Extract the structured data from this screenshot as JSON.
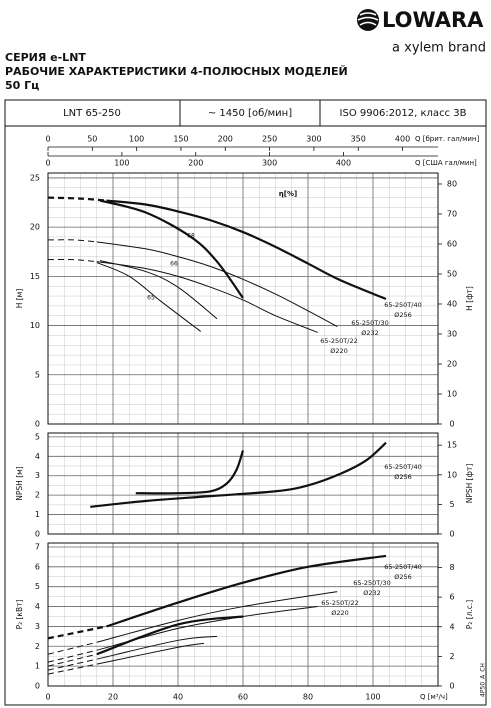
{
  "header": {
    "logo": "LOWARA",
    "brand": "a xylem brand",
    "title_lines": [
      "СЕРИЯ e-LNT",
      "РАБОЧИЕ ХАРАКТЕРИСТИКИ 4-ПОЛЮСНЫХ МОДЕЛЕЙ",
      "50 Гц"
    ]
  },
  "info": [
    "LNT 65-250",
    "~ 1450 [об/мин]",
    "ISO 9906:2012, класс 3B"
  ],
  "top_axes": [
    {
      "label": "Q [брит. гал/мин]",
      "xlim": [
        0,
        440
      ],
      "xticks": [
        0,
        50,
        100,
        150,
        200,
        250,
        300,
        350,
        400
      ]
    },
    {
      "label": "Q [США гал/мин]",
      "xlim": [
        0,
        528
      ],
      "xticks": [
        0,
        100,
        200,
        300,
        400
      ]
    }
  ],
  "footer_code": "4P50_A_CH",
  "chart_data": [
    {
      "type": "line",
      "ylabel": "H [м]",
      "y2label": "H [фт]",
      "xlim": [
        0,
        120
      ],
      "xticks": [
        0,
        20,
        40,
        60,
        80,
        100
      ],
      "x_minor_divisions": 4,
      "ylim": [
        0,
        25.5
      ],
      "yticks": [
        0,
        5,
        10,
        15,
        20,
        25
      ],
      "y_minor_divisions": 5,
      "y2lim": [
        0,
        83.66
      ],
      "y2ticks": [
        0,
        10,
        20,
        30,
        40,
        50,
        60,
        70,
        80
      ],
      "grid": true,
      "color": "#111",
      "annotations": [
        "η[%]",
        "68",
        "66",
        "65"
      ],
      "series": [
        {
          "name": "65-250T/40",
          "diameter": "Ø256",
          "bold": true,
          "x": [
            18,
            30,
            40,
            50,
            60,
            70,
            80,
            90,
            104
          ],
          "values": [
            22.7,
            22.3,
            21.6,
            20.7,
            19.5,
            18.0,
            16.3,
            14.6,
            12.7
          ]
        },
        {
          "style": "dashed",
          "bold": true,
          "x": [
            0,
            10,
            18
          ],
          "values": [
            23.0,
            22.9,
            22.7
          ]
        },
        {
          "name": "65-250T/30",
          "diameter": "Ø232",
          "x": [
            15,
            30,
            40,
            50,
            60,
            70,
            80,
            89
          ],
          "values": [
            18.5,
            17.8,
            17.0,
            16.0,
            14.7,
            13.2,
            11.5,
            9.9
          ]
        },
        {
          "style": "dashed",
          "x": [
            0,
            8,
            15
          ],
          "values": [
            18.7,
            18.7,
            18.5
          ]
        },
        {
          "name": "65-250T/22",
          "diameter": "Ø220",
          "x": [
            15,
            30,
            40,
            50,
            60,
            70,
            83
          ],
          "values": [
            16.5,
            15.8,
            15.0,
            13.9,
            12.6,
            11.0,
            9.3
          ]
        },
        {
          "style": "dashed",
          "x": [
            0,
            8,
            15
          ],
          "values": [
            16.7,
            16.7,
            16.5
          ]
        },
        {
          "bold": true,
          "x": [
            16,
            30,
            44,
            52,
            60
          ],
          "values": [
            22.7,
            21.5,
            19.0,
            16.5,
            12.8
          ]
        },
        {
          "x": [
            16,
            30,
            40,
            52
          ],
          "values": [
            16.6,
            15.5,
            13.9,
            10.7
          ]
        },
        {
          "x": [
            15,
            25,
            35,
            47
          ],
          "values": [
            16.4,
            15.0,
            12.4,
            9.4
          ]
        }
      ]
    },
    {
      "type": "line",
      "ylabel": "NPSH [м]",
      "y2label": "NPSH [фт]",
      "xlim": [
        0,
        120
      ],
      "xticks": [
        0,
        20,
        40,
        60,
        80,
        100
      ],
      "x_minor_divisions": 4,
      "ylim": [
        0,
        5.2
      ],
      "yticks": [
        0,
        1,
        2,
        3,
        4,
        5
      ],
      "y_minor_divisions": 2,
      "y2lim": [
        0,
        17.06
      ],
      "y2ticks": [
        0,
        5,
        10,
        15
      ],
      "grid": true,
      "color": "#111",
      "series": [
        {
          "name": "65-250T/40",
          "diameter": "Ø256",
          "bold": true,
          "x": [
            13,
            30,
            50,
            70,
            80,
            90,
            98,
            104
          ],
          "values": [
            1.4,
            1.7,
            1.95,
            2.2,
            2.5,
            3.1,
            3.8,
            4.7
          ]
        },
        {
          "bold": true,
          "x": [
            27,
            40,
            50,
            55,
            58,
            60
          ],
          "values": [
            2.1,
            2.1,
            2.2,
            2.6,
            3.3,
            4.3
          ]
        }
      ]
    },
    {
      "type": "line",
      "ylabel": "P₂ [кВт]",
      "y2label": "P₂ [л.с.]",
      "xlabel": "Q [м³/ч]",
      "xlim": [
        0,
        120
      ],
      "xticks": [
        0,
        20,
        40,
        60,
        80,
        100
      ],
      "x_minor_divisions": 4,
      "ylim": [
        0,
        7.2
      ],
      "yticks": [
        0,
        1,
        2,
        3,
        4,
        5,
        6,
        7
      ],
      "y_minor_divisions": 2,
      "y2lim": [
        0,
        9.655
      ],
      "y2ticks": [
        0,
        2,
        4,
        6,
        8
      ],
      "grid": true,
      "color": "#111",
      "series": [
        {
          "name": "65-250T/40",
          "diameter": "Ø256",
          "bold": true,
          "x": [
            18,
            40,
            60,
            80,
            104
          ],
          "values": [
            3.0,
            4.2,
            5.2,
            6.0,
            6.55
          ]
        },
        {
          "style": "dashed",
          "bold": true,
          "x": [
            0,
            18
          ],
          "values": [
            2.4,
            3.0
          ]
        },
        {
          "name": "65-250T/30",
          "diameter": "Ø232",
          "x": [
            15,
            40,
            60,
            89
          ],
          "values": [
            2.2,
            3.3,
            4.0,
            4.75
          ]
        },
        {
          "style": "dashed",
          "x": [
            0,
            15
          ],
          "values": [
            1.6,
            2.2
          ]
        },
        {
          "name": "65-250T/22",
          "diameter": "Ø220",
          "x": [
            15,
            40,
            60,
            83
          ],
          "values": [
            1.8,
            2.9,
            3.5,
            4.0
          ]
        },
        {
          "style": "dashed",
          "x": [
            0,
            15
          ],
          "values": [
            1.2,
            1.8
          ]
        },
        {
          "bold": true,
          "x": [
            15,
            40,
            60
          ],
          "values": [
            1.6,
            3.1,
            3.5
          ]
        },
        {
          "style": "dashed",
          "x": [
            0,
            15
          ],
          "values": [
            1.0,
            1.6
          ]
        },
        {
          "x": [
            15,
            40,
            52
          ],
          "values": [
            1.35,
            2.3,
            2.5
          ]
        },
        {
          "style": "dashed",
          "x": [
            0,
            15
          ],
          "values": [
            0.8,
            1.35
          ]
        },
        {
          "x": [
            15,
            40,
            48
          ],
          "values": [
            1.1,
            1.95,
            2.15
          ]
        },
        {
          "style": "dashed",
          "x": [
            0,
            15
          ],
          "values": [
            0.6,
            1.1
          ]
        }
      ]
    }
  ]
}
